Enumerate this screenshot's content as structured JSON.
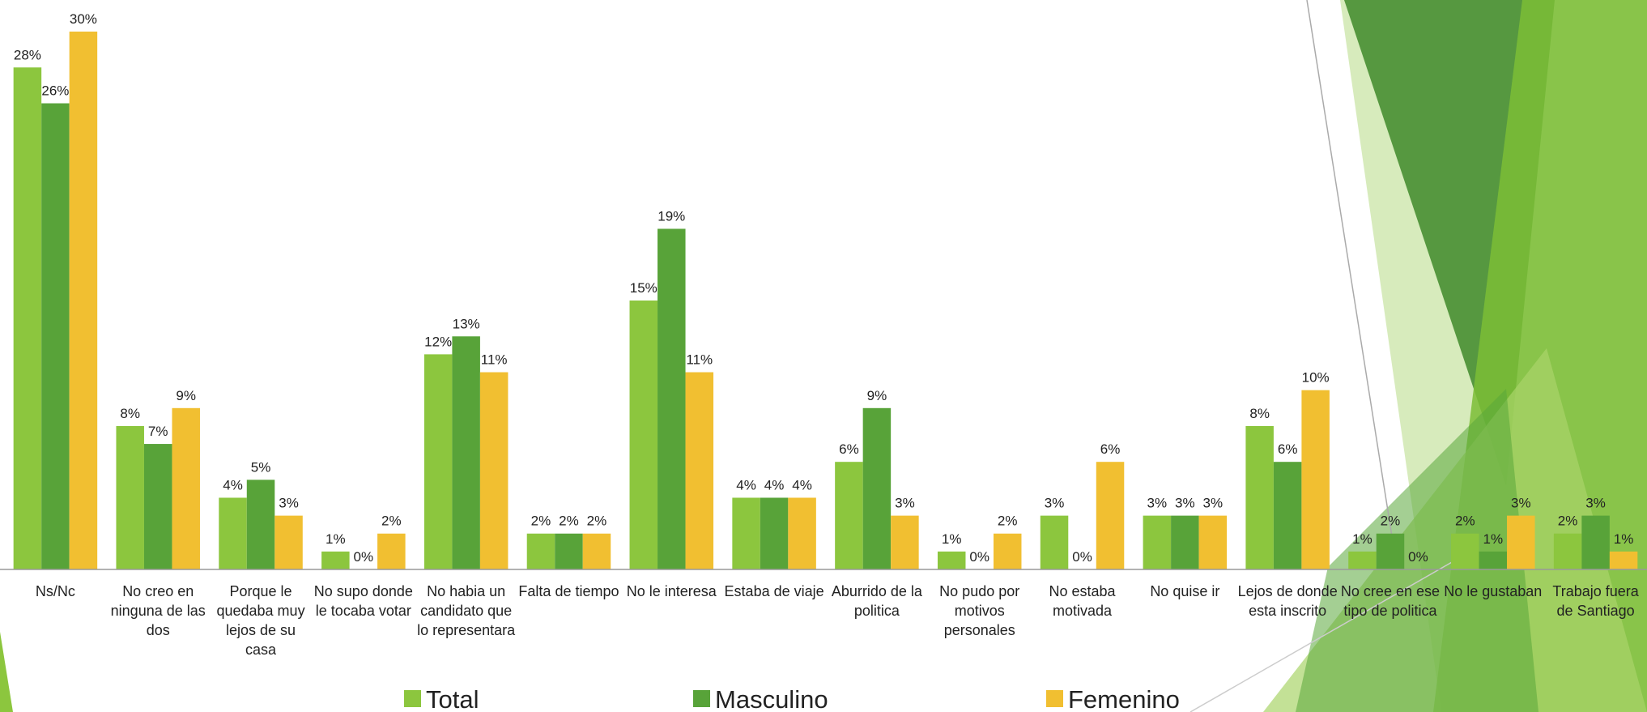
{
  "chart_data": {
    "type": "bar",
    "categories": [
      "Ns/Nc",
      "No creo en ninguna de las dos",
      "Porque le quedaba muy lejos de  su casa",
      "No supo donde le tocaba votar",
      "No habia un candidato que lo representara",
      "Falta de tiempo",
      "No le interesa",
      "Estaba de viaje",
      "Aburrido de la politica",
      "No pudo por motivos personales",
      "No estaba motivada",
      "No quise ir",
      "Lejos de donde esta inscrito",
      "No cree en ese tipo de politica",
      "No le gustaban",
      "Trabajo fuera de Santiago"
    ],
    "series": [
      {
        "name": "Total",
        "color": "#8cc63e",
        "values": [
          28,
          8,
          4,
          1,
          12,
          2,
          15,
          4,
          6,
          1,
          3,
          3,
          8,
          1,
          2,
          2
        ],
        "value_labels": [
          "28%",
          "8%",
          "4%",
          "1%",
          "12%",
          "2%",
          "15%",
          "4%",
          "6%",
          "1%",
          "3%",
          "3%",
          "8%",
          "1%",
          "2%",
          "2%"
        ]
      },
      {
        "name": "Masculino",
        "color": "#58a339",
        "values": [
          26,
          7,
          5,
          0,
          13,
          2,
          19,
          4,
          9,
          0,
          0,
          3,
          6,
          2,
          1,
          3
        ],
        "value_labels": [
          "26%",
          "7%",
          "5%",
          "0%",
          "13%",
          "2%",
          "19%",
          "4%",
          "9%",
          "0%",
          "0%",
          "3%",
          "6%",
          "2%",
          "1%",
          "3%"
        ]
      },
      {
        "name": "Femenino",
        "color": "#f1bf31",
        "values": [
          30,
          9,
          3,
          2,
          11,
          2,
          11,
          4,
          3,
          2,
          6,
          3,
          10,
          0,
          3,
          1
        ],
        "value_labels": [
          "30%",
          "9%",
          "3%",
          "2%",
          "11%",
          "2%",
          "11%",
          "4%",
          "3%",
          "2%",
          "6%",
          "3%",
          "10%",
          "0%",
          "3%",
          "1%"
        ]
      }
    ]
  }
}
